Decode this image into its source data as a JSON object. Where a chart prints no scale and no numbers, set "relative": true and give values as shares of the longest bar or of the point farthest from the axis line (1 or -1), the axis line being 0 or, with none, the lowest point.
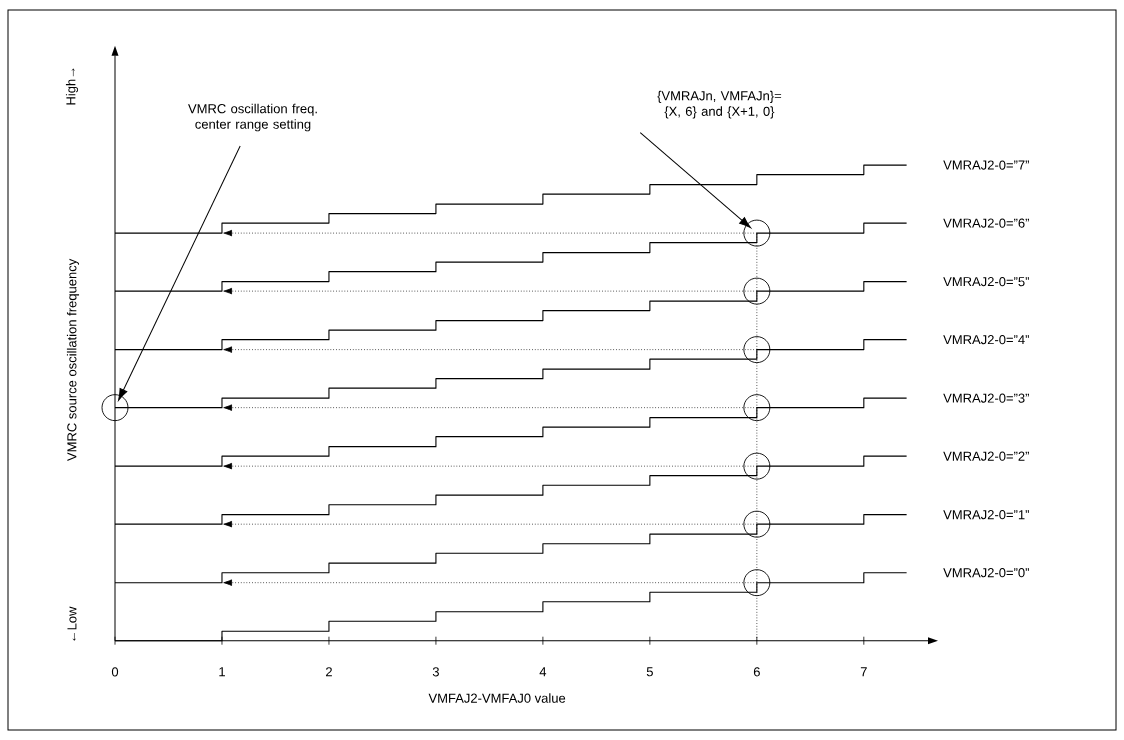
{
  "chart_data": {
    "type": "step",
    "relative": true,
    "xlabel": "VMFAJ2-VMFAJ0 value",
    "ylabel": "VMRC source oscillation frequency",
    "x": [
      0,
      1,
      2,
      3,
      4,
      5,
      6,
      7,
      7.4
    ],
    "xlim": [
      0,
      7.6
    ],
    "xticks": [
      0,
      1,
      2,
      3,
      4,
      5,
      6,
      7
    ],
    "series": [
      {
        "name": "VMRAJ2-0=”0”",
        "color": "#000000",
        "values": [
          0,
          0.02,
          0.041,
          0.061,
          0.082,
          0.102,
          0.122,
          0.143,
          0.143
        ]
      },
      {
        "name": "VMRAJ2-0=”1”",
        "color": "#000000",
        "values": [
          0.122,
          0.143,
          0.163,
          0.184,
          0.204,
          0.224,
          0.245,
          0.265,
          0.265
        ]
      },
      {
        "name": "VMRAJ2-0=”2”",
        "color": "#000000",
        "values": [
          0.245,
          0.265,
          0.286,
          0.306,
          0.327,
          0.347,
          0.367,
          0.388,
          0.388
        ]
      },
      {
        "name": "VMRAJ2-0=”3”",
        "color": "#000000",
        "values": [
          0.367,
          0.388,
          0.408,
          0.429,
          0.449,
          0.469,
          0.49,
          0.51,
          0.51
        ]
      },
      {
        "name": "VMRAJ2-0=”4”",
        "color": "#000000",
        "values": [
          0.49,
          0.51,
          0.531,
          0.551,
          0.571,
          0.592,
          0.612,
          0.633,
          0.633
        ]
      },
      {
        "name": "VMRAJ2-0=”5”",
        "color": "#000000",
        "values": [
          0.612,
          0.633,
          0.653,
          0.673,
          0.694,
          0.714,
          0.735,
          0.755,
          0.755
        ]
      },
      {
        "name": "VMRAJ2-0=”6”",
        "color": "#000000",
        "values": [
          0.735,
          0.755,
          0.776,
          0.796,
          0.816,
          0.837,
          0.857,
          0.878,
          0.878
        ]
      },
      {
        "name": "VMRAJ2-0=”7”",
        "color": "#000000",
        "values": [
          0.857,
          0.878,
          0.898,
          0.918,
          0.939,
          0.959,
          0.98,
          1,
          1
        ]
      }
    ],
    "ref_lines": [
      {
        "axis": "x",
        "value": 6,
        "line_style": "dotted"
      }
    ],
    "annotations": [
      "VMRC oscillation freq. center range setting",
      "{VMRAJn, VMFAJn}= {X, 6}  and  {X+1, 0}",
      "High→",
      "←Low"
    ],
    "line_style": "solid",
    "marker": "none"
  }
}
